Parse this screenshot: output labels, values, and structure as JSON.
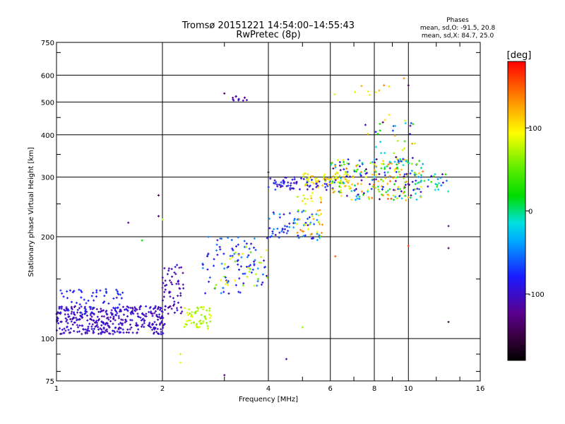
{
  "header": {
    "title_line1": "Tromsø 20151221 14:54:00–14:55:43",
    "title_line2": "RwPretec (8p)"
  },
  "stats": {
    "heading": "Phases",
    "line1": "mean, sd,O: -91.5, 20.8",
    "line2": "mean, sd,X: 84.7, 25.0"
  },
  "colorbar": {
    "label": "[deg]",
    "ticks": [
      {
        "value": 100,
        "label": "100"
      },
      {
        "value": 0,
        "label": "0"
      },
      {
        "value": -100,
        "label": "-100"
      }
    ],
    "range": [
      -180,
      180
    ],
    "colormap": "rainbow (black-purple-blue-cyan-green-yellow-orange-red)"
  },
  "chart_data": {
    "type": "scatter",
    "xlabel": "Frequency [MHz]",
    "ylabel": "Stationary phase Virtual Height [km]",
    "x_scale": "log",
    "y_scale": "log",
    "xlim": [
      1,
      16
    ],
    "ylim": [
      75,
      750
    ],
    "xticks": [
      1,
      2,
      4,
      6,
      8,
      10,
      16
    ],
    "yticks": [
      75,
      100,
      200,
      300,
      400,
      500,
      600,
      750
    ],
    "grid_x": [
      2,
      4,
      6,
      8,
      10
    ],
    "grid_y": [
      100,
      200,
      300,
      400,
      500,
      600
    ],
    "color_variable": "phase [deg]",
    "clusters": [
      {
        "x": [
          1.0,
          2.05
        ],
        "h": [
          103,
          125
        ],
        "phase": [
          -115,
          -90
        ],
        "count": 380
      },
      {
        "x": [
          1.0,
          1.6
        ],
        "h": [
          118,
          140
        ],
        "phase": [
          -90,
          -70
        ],
        "count": 60
      },
      {
        "x": [
          2.0,
          2.3
        ],
        "h": [
          118,
          165
        ],
        "phase": [
          -120,
          -95
        ],
        "count": 60
      },
      {
        "x": [
          2.3,
          2.75
        ],
        "h": [
          107,
          125
        ],
        "phase": [
          60,
          90
        ],
        "count": 55
      },
      {
        "x": [
          2.6,
          4.0
        ],
        "h": [
          135,
          200
        ],
        "phase": [
          -110,
          -40
        ],
        "count": 90
      },
      {
        "x": [
          2.8,
          4.0
        ],
        "h": [
          140,
          190
        ],
        "phase": [
          40,
          110
        ],
        "count": 30
      },
      {
        "x": [
          4.0,
          5.6
        ],
        "h": [
          195,
          240
        ],
        "phase": [
          -110,
          -30
        ],
        "count": 60
      },
      {
        "x": [
          4.8,
          5.7
        ],
        "h": [
          200,
          270
        ],
        "phase": [
          60,
          150
        ],
        "count": 40
      },
      {
        "x": [
          4.0,
          6.0
        ],
        "h": [
          275,
          300
        ],
        "phase": [
          -120,
          -60
        ],
        "count": 70
      },
      {
        "x": [
          5.0,
          7.0
        ],
        "h": [
          278,
          312
        ],
        "phase": [
          70,
          120
        ],
        "count": 70
      },
      {
        "x": [
          6.0,
          11.0
        ],
        "h": [
          255,
          340
        ],
        "phase": [
          -130,
          150
        ],
        "count": 230
      },
      {
        "x": [
          7.5,
          10.5
        ],
        "h": [
          300,
          460
        ],
        "phase": [
          -150,
          130
        ],
        "count": 50
      },
      {
        "x": [
          10.0,
          13.0
        ],
        "h": [
          270,
          310
        ],
        "phase": [
          -110,
          40
        ],
        "count": 30
      },
      {
        "x": [
          6.1,
          9.8
        ],
        "h": [
          480,
          590
        ],
        "phase": [
          80,
          150
        ],
        "count": 10
      },
      {
        "x": [
          3.15,
          3.5
        ],
        "h": [
          505,
          520
        ],
        "phase": [
          -130,
          -100
        ],
        "count": 12
      }
    ],
    "isolated": [
      {
        "x": 3.0,
        "h": 530,
        "phase": -150
      },
      {
        "x": 1.6,
        "h": 220,
        "phase": -120
      },
      {
        "x": 1.95,
        "h": 265,
        "phase": -150
      },
      {
        "x": 1.95,
        "h": 230,
        "phase": -140
      },
      {
        "x": 2.25,
        "h": 90,
        "phase": 80
      },
      {
        "x": 2.25,
        "h": 85,
        "phase": 90
      },
      {
        "x": 3.0,
        "h": 78,
        "phase": -130
      },
      {
        "x": 4.5,
        "h": 87,
        "phase": -110
      },
      {
        "x": 10.0,
        "h": 560,
        "phase": -140
      },
      {
        "x": 13.0,
        "h": 215,
        "phase": -130
      },
      {
        "x": 13.0,
        "h": 185,
        "phase": -140
      },
      {
        "x": 13.0,
        "h": 112,
        "phase": -150
      },
      {
        "x": 10.0,
        "h": 188,
        "phase": 160
      },
      {
        "x": 6.2,
        "h": 175,
        "phase": 150
      },
      {
        "x": 1.75,
        "h": 195,
        "phase": 20
      },
      {
        "x": 2.0,
        "h": 225,
        "phase": 70
      },
      {
        "x": 4.0,
        "h": 310,
        "phase": -160
      },
      {
        "x": 5.0,
        "h": 108,
        "phase": 70
      }
    ]
  }
}
